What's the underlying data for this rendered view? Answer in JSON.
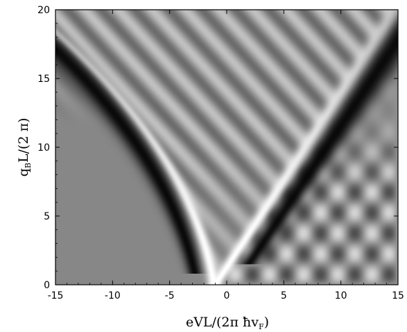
{
  "chart_data": {
    "type": "heatmap",
    "title": "",
    "xlabel": "eVL/(2π ħv_F)",
    "ylabel": "q_B L/(2 π)",
    "xlabel_parts": {
      "main": "eVL/(2π ",
      "hbar": "ħ",
      "v": "v",
      "sub": "F",
      "close": ")"
    },
    "ylabel_parts": {
      "q": "q",
      "sub": "B",
      "rest": "L/(2 π)"
    },
    "xlim": [
      -15,
      15
    ],
    "ylim": [
      0,
      20
    ],
    "xticks": [
      -15,
      -10,
      -5,
      0,
      5,
      10,
      15
    ],
    "yticks": [
      0,
      5,
      10,
      15,
      20
    ],
    "colormap": "grayscale",
    "grid": false,
    "colors": {
      "background_gray": "#8f8f8f",
      "white": "#ffffff",
      "black": "#0a0a0a"
    }
  }
}
